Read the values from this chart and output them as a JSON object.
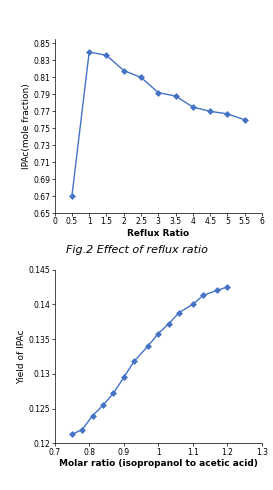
{
  "chart1": {
    "x": [
      0.5,
      1.0,
      1.5,
      2.0,
      2.5,
      3.0,
      3.5,
      4.0,
      4.5,
      5.0,
      5.5
    ],
    "y": [
      0.67,
      0.84,
      0.836,
      0.818,
      0.81,
      0.792,
      0.788,
      0.775,
      0.77,
      0.767,
      0.76
    ],
    "xlabel": "Reflux Ratio",
    "ylabel": "IPAc(mole fraction)",
    "title": "Fig.2 Effect of reflux ratio",
    "xlim": [
      0,
      6
    ],
    "ylim": [
      0.65,
      0.855
    ],
    "xticks": [
      0,
      0.5,
      1,
      1.5,
      2,
      2.5,
      3,
      3.5,
      4,
      4.5,
      5,
      5.5,
      6
    ],
    "xtick_labels": [
      "0",
      "0.5",
      "1",
      "1.5",
      "2",
      "2.5",
      "3",
      "3.5",
      "4",
      "4.5",
      "5",
      "5.5",
      "6"
    ],
    "yticks": [
      0.65,
      0.67,
      0.69,
      0.71,
      0.73,
      0.75,
      0.77,
      0.79,
      0.81,
      0.83,
      0.85
    ],
    "ytick_labels": [
      "0.65",
      "0.67",
      "0.69",
      "0.71",
      "0.73",
      "0.75",
      "0.77",
      "0.79",
      "0.81",
      "0.83",
      "0.85"
    ],
    "line_color": "#4472c4",
    "marker": "D",
    "markersize": 3
  },
  "chart2": {
    "x": [
      0.75,
      0.78,
      0.81,
      0.84,
      0.87,
      0.9,
      0.93,
      0.97,
      1.0,
      1.03,
      1.06,
      1.1,
      1.13,
      1.17,
      1.2
    ],
    "y": [
      0.1213,
      0.122,
      0.124,
      0.1255,
      0.1272,
      0.1295,
      0.1318,
      0.134,
      0.1358,
      0.1372,
      0.1388,
      0.14,
      0.1413,
      0.142,
      0.1425
    ],
    "xlabel": "Molar ratio (isopropanol to acetic acid)",
    "ylabel": "Yield of IPAc",
    "xlim": [
      0.7,
      1.3
    ],
    "ylim": [
      0.12,
      0.145
    ],
    "xticks": [
      0.7,
      0.8,
      0.9,
      1.0,
      1.1,
      1.2,
      1.3
    ],
    "xtick_labels": [
      "0.7",
      "0.8",
      "0.9",
      "1",
      "1.1",
      "1.2",
      "1.3"
    ],
    "yticks": [
      0.12,
      0.125,
      0.13,
      0.135,
      0.14,
      0.145
    ],
    "ytick_labels": [
      "0.12",
      "0.125",
      "0.13",
      "0.135",
      "0.14",
      "0.145"
    ],
    "line_color": "#4472c4",
    "marker": "D",
    "markersize": 3
  },
  "figure_bg": "#ffffff"
}
